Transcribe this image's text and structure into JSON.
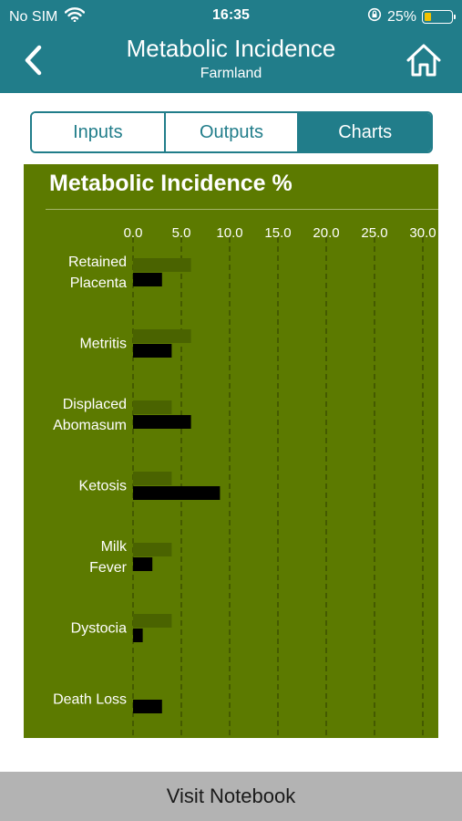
{
  "status_bar": {
    "carrier": "No SIM",
    "time": "16:35",
    "battery_percent": "25%",
    "battery_level": 0.25,
    "icons": [
      "wifi-icon",
      "orientation-lock-icon",
      "battery-icon"
    ]
  },
  "nav": {
    "title": "Metabolic Incidence",
    "subtitle": "Farmland",
    "back_icon": "chevron-left-icon",
    "home_icon": "home-icon"
  },
  "tabs": [
    {
      "label": "Inputs",
      "active": false
    },
    {
      "label": "Outputs",
      "active": false
    },
    {
      "label": "Charts",
      "active": true
    }
  ],
  "colors": {
    "header": "#217d8a",
    "chart_background": "#5c7a00",
    "series_1": "#4a6300",
    "series_2": "#000000",
    "footer": "#b3b3b3"
  },
  "chart_data": {
    "type": "bar",
    "orientation": "horizontal",
    "title": "Metabolic Incidence %",
    "categories": [
      [
        "Retained",
        "Placenta"
      ],
      [
        "Metritis"
      ],
      [
        "Displaced",
        "Abomasum"
      ],
      [
        "Ketosis"
      ],
      [
        "Milk",
        "Fever"
      ],
      [
        "Dystocia"
      ],
      [
        "Death Loss"
      ]
    ],
    "series": [
      {
        "values": [
          6.0,
          6.0,
          4.0,
          4.0,
          4.0,
          4.0,
          null
        ]
      },
      {
        "values": [
          3.0,
          4.0,
          6.0,
          9.0,
          2.0,
          1.0,
          3.0
        ]
      }
    ],
    "x_ticks": [
      "0.0",
      "5.0",
      "10.0",
      "15.0",
      "20.0",
      "25.0",
      "30.0"
    ],
    "xlim": [
      0,
      30
    ],
    "axis_position": "top",
    "grid": "dashed vertical"
  },
  "footer": {
    "label": "Visit Notebook"
  }
}
